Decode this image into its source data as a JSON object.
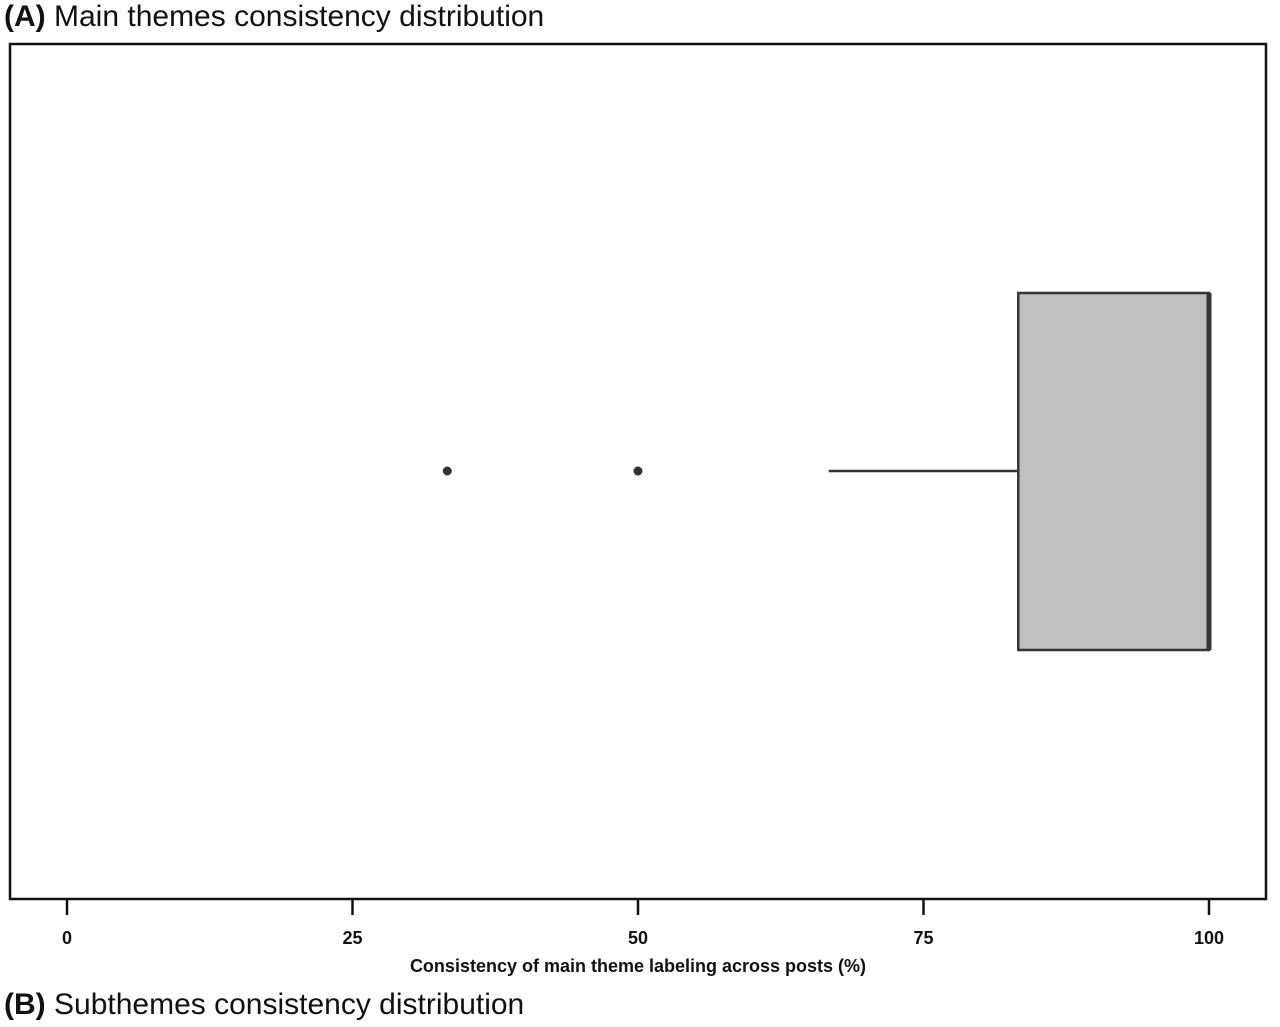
{
  "panels": {
    "a": {
      "tag": "(A)",
      "title": "Main themes consistency distribution"
    },
    "b": {
      "tag": "(B)",
      "title": "Subthemes consistency distribution"
    }
  },
  "chart_data": {
    "type": "boxplot",
    "orientation": "horizontal",
    "title": "Main themes consistency distribution",
    "xlabel": "Consistency of main theme labeling across posts (%)",
    "ylabel": "",
    "xlim": [
      -5,
      105
    ],
    "xticks": [
      0,
      25,
      50,
      75,
      100
    ],
    "grid": false,
    "box": {
      "whisker_low": 66.7,
      "q1": 83.3,
      "median": 100,
      "q3": 100,
      "whisker_high": 100,
      "outliers": [
        33.3,
        50
      ]
    },
    "colors": {
      "box_fill": "#c0c0c0",
      "line": "#333333",
      "frame": "#111111"
    }
  }
}
